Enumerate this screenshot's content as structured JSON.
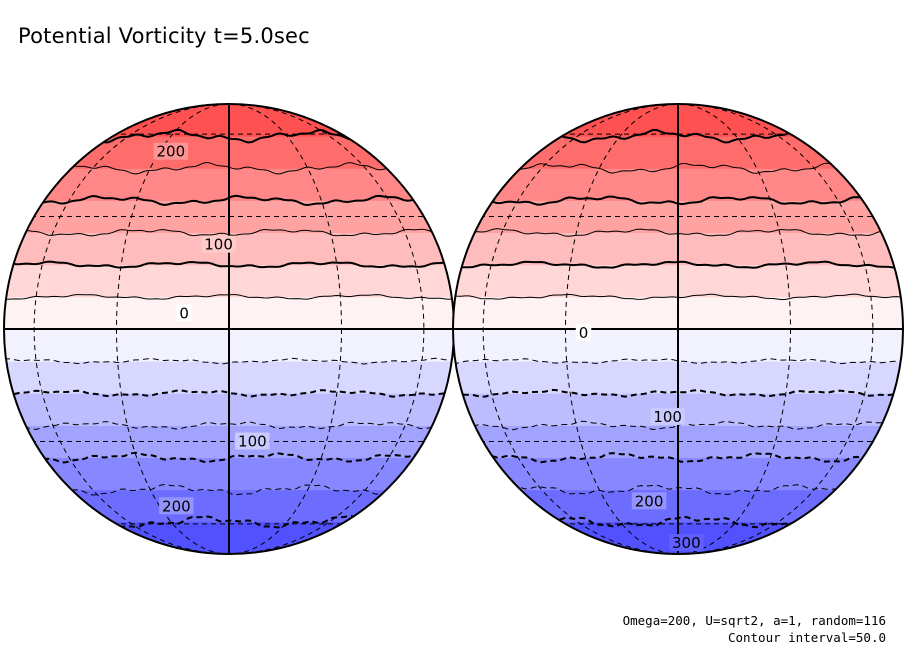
{
  "title": "Potential Vorticity t=5.0sec",
  "footer": {
    "line1": "Omega=200, U=sqrt2, a=1, random=116",
    "line2": "Contour interval=50.0"
  },
  "chart_data": {
    "type": "contour-map",
    "title": "Potential Vorticity t=5.0sec",
    "projection": "orthographic, two hemispheres side by side",
    "contour_interval": 50.0,
    "value_range": [
      -350,
      350
    ],
    "colormap": {
      "positive": "#ff4444",
      "zero": "#ffffff",
      "negative": "#4444ff"
    },
    "grid": "dashed graticule",
    "contour_levels": [
      -350,
      -300,
      -250,
      -200,
      -150,
      -100,
      -50,
      0,
      50,
      100,
      150,
      200,
      250,
      300,
      350
    ],
    "negative_contour_style": "dashed",
    "globes": [
      {
        "name": "left",
        "labels": [
          {
            "text": "200",
            "value": 200,
            "lat": 52
          },
          {
            "text": "100",
            "value": 100,
            "lat": 22
          },
          {
            "text": "0",
            "value": 0,
            "lat": 4
          },
          {
            "text": "100",
            "value": -100,
            "lat": -30
          },
          {
            "text": "200",
            "value": -200,
            "lat": -52
          }
        ]
      },
      {
        "name": "right",
        "labels": [
          {
            "text": "0",
            "value": 0,
            "lat": -1
          },
          {
            "text": "100",
            "value": -100,
            "lat": -23
          },
          {
            "text": "200",
            "value": -200,
            "lat": -50
          },
          {
            "text": "300",
            "value": -300,
            "lat": -72
          }
        ]
      }
    ]
  }
}
